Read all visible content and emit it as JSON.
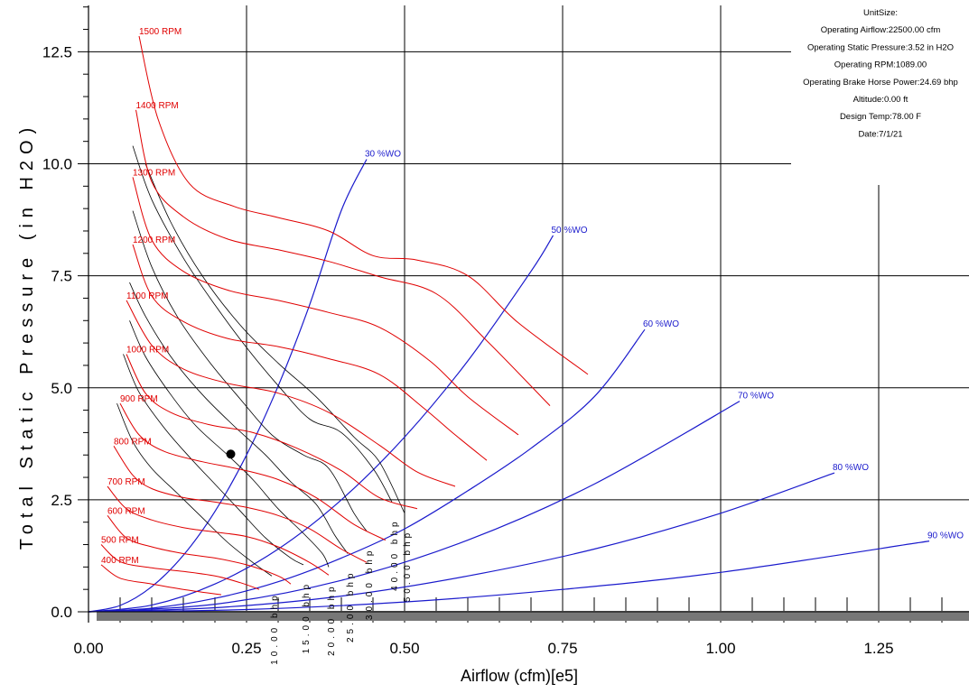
{
  "chart_data": {
    "type": "line",
    "title": "",
    "xlabel": "Airflow (cfm)[e5]",
    "ylabel": "Total Static Pressure (in H2O)",
    "xlim": [
      0,
      1.39
    ],
    "ylim": [
      0,
      13.5
    ],
    "x_ticks": [
      "0.00",
      "0.25",
      "0.50",
      "0.75",
      "1.00",
      "1.25"
    ],
    "y_ticks": [
      "0.0",
      "2.5",
      "5.0",
      "7.5",
      "10.0",
      "12.5"
    ],
    "grid": true,
    "operating_point": {
      "x": 0.225,
      "y": 3.52
    },
    "info_box": {
      "lines": [
        "UnitSize:",
        "Operating Airflow:22500.00 cfm",
        "Operating Static Pressure:3.52 in H2O",
        "Operating RPM:1089.00",
        "Operating Brake Horse Power:24.69 bhp",
        "Altitude:0.00 ft",
        "Design Temp:78.00 F",
        "Date:7/1/21"
      ]
    },
    "rpm_series": [
      {
        "name": "400 RPM",
        "color": "#e00000",
        "x": [
          0.02,
          0.05,
          0.1,
          0.15,
          0.21
        ],
        "y": [
          1.05,
          0.75,
          0.62,
          0.5,
          0.38
        ]
      },
      {
        "name": "500 RPM",
        "color": "#e00000",
        "x": [
          0.02,
          0.05,
          0.1,
          0.15,
          0.2,
          0.24,
          0.27
        ],
        "y": [
          1.5,
          1.12,
          0.98,
          0.9,
          0.8,
          0.65,
          0.5
        ]
      },
      {
        "name": "600 RPM",
        "color": "#e00000",
        "x": [
          0.03,
          0.06,
          0.1,
          0.15,
          0.2,
          0.25,
          0.3,
          0.32
        ],
        "y": [
          2.15,
          1.65,
          1.45,
          1.3,
          1.2,
          1.05,
          0.8,
          0.62
        ]
      },
      {
        "name": "700 RPM",
        "color": "#e00000",
        "x": [
          0.03,
          0.06,
          0.1,
          0.15,
          0.2,
          0.25,
          0.3,
          0.35,
          0.38
        ],
        "y": [
          2.8,
          2.3,
          2.05,
          1.88,
          1.78,
          1.68,
          1.45,
          1.1,
          0.82
        ]
      },
      {
        "name": "800 RPM",
        "color": "#e00000",
        "x": [
          0.04,
          0.07,
          0.1,
          0.15,
          0.2,
          0.25,
          0.3,
          0.35,
          0.4,
          0.44
        ],
        "y": [
          3.7,
          3.05,
          2.75,
          2.55,
          2.45,
          2.33,
          2.15,
          1.85,
          1.4,
          1.1
        ]
      },
      {
        "name": "900 RPM",
        "color": "#e00000",
        "x": [
          0.05,
          0.08,
          0.12,
          0.18,
          0.24,
          0.3,
          0.36,
          0.42,
          0.47
        ],
        "y": [
          4.65,
          3.95,
          3.58,
          3.35,
          3.18,
          2.95,
          2.55,
          1.95,
          1.6
        ]
      },
      {
        "name": "1000 RPM",
        "color": "#e00000",
        "x": [
          0.06,
          0.09,
          0.13,
          0.19,
          0.26,
          0.33,
          0.4,
          0.46,
          0.52
        ],
        "y": [
          5.75,
          4.88,
          4.45,
          4.18,
          4.0,
          3.65,
          3.15,
          2.55,
          2.3
        ]
      },
      {
        "name": "1100 RPM",
        "color": "#e00000",
        "x": [
          0.06,
          0.1,
          0.15,
          0.22,
          0.3,
          0.38,
          0.46,
          0.52,
          0.58
        ],
        "y": [
          6.95,
          5.95,
          5.42,
          5.1,
          4.88,
          4.45,
          3.72,
          3.12,
          2.8
        ]
      },
      {
        "name": "1200 RPM",
        "color": "#e00000",
        "x": [
          0.07,
          0.1,
          0.15,
          0.22,
          0.3,
          0.38,
          0.46,
          0.53,
          0.58,
          0.63
        ],
        "y": [
          8.2,
          7.05,
          6.48,
          6.1,
          5.92,
          5.65,
          5.3,
          4.55,
          3.95,
          3.38
        ]
      },
      {
        "name": "1300 RPM",
        "color": "#e00000",
        "x": [
          0.07,
          0.1,
          0.15,
          0.22,
          0.3,
          0.38,
          0.46,
          0.54,
          0.6,
          0.68
        ],
        "y": [
          9.7,
          8.3,
          7.6,
          7.18,
          6.95,
          6.68,
          6.35,
          5.6,
          4.8,
          3.95
        ]
      },
      {
        "name": "1400 RPM",
        "color": "#e00000",
        "x": [
          0.075,
          0.1,
          0.15,
          0.22,
          0.3,
          0.38,
          0.46,
          0.55,
          0.63,
          0.73
        ],
        "y": [
          11.2,
          9.6,
          8.82,
          8.32,
          8.08,
          7.82,
          7.48,
          7.1,
          6.05,
          4.6
        ]
      },
      {
        "name": "1500 RPM",
        "color": "#e00000",
        "x": [
          0.08,
          0.11,
          0.16,
          0.23,
          0.3,
          0.38,
          0.45,
          0.52,
          0.6,
          0.68,
          0.79
        ],
        "y": [
          12.85,
          11.0,
          9.55,
          9.05,
          8.8,
          8.5,
          7.95,
          7.85,
          7.5,
          6.45,
          5.3
        ]
      }
    ],
    "wo_series": [
      {
        "name": "30 %WO",
        "color": "#1a1acc",
        "x": [
          0.0,
          0.05,
          0.1,
          0.15,
          0.2,
          0.25,
          0.3,
          0.35,
          0.4,
          0.44
        ],
        "y": [
          0.0,
          0.14,
          0.56,
          1.26,
          2.24,
          3.5,
          5.04,
          6.86,
          8.96,
          10.1
        ]
      },
      {
        "name": "50 %WO",
        "color": "#1a1acc",
        "x": [
          0.0,
          0.1,
          0.2,
          0.3,
          0.4,
          0.5,
          0.6,
          0.7,
          0.735
        ],
        "y": [
          0.0,
          0.15,
          0.62,
          1.4,
          2.5,
          3.9,
          5.6,
          7.6,
          8.4
        ]
      },
      {
        "name": "60 %WO",
        "color": "#1a1acc",
        "x": [
          0.0,
          0.1,
          0.2,
          0.3,
          0.4,
          0.5,
          0.6,
          0.7,
          0.8,
          0.88
        ],
        "y": [
          0.0,
          0.08,
          0.3,
          0.67,
          1.2,
          1.85,
          2.7,
          3.65,
          4.8,
          6.3
        ]
      },
      {
        "name": "70 %WO",
        "color": "#1a1acc",
        "x": [
          0.0,
          0.2,
          0.4,
          0.6,
          0.8,
          1.03
        ],
        "y": [
          0.0,
          0.17,
          0.7,
          1.6,
          2.85,
          4.7
        ]
      },
      {
        "name": "80 %WO",
        "color": "#1a1acc",
        "x": [
          0.0,
          0.2,
          0.4,
          0.6,
          0.8,
          1.0,
          1.18
        ],
        "y": [
          0.0,
          0.09,
          0.35,
          0.8,
          1.4,
          2.2,
          3.1
        ]
      },
      {
        "name": "90 %WO",
        "color": "#1a1acc",
        "x": [
          0.0,
          0.25,
          0.5,
          0.75,
          1.0,
          1.33
        ],
        "y": [
          0.0,
          0.05,
          0.22,
          0.5,
          0.88,
          1.58
        ]
      }
    ],
    "bhp_series": [
      {
        "name": "10.00 bhp",
        "color": "#000000",
        "x": [
          0.045,
          0.07,
          0.1,
          0.14,
          0.18,
          0.22,
          0.26,
          0.29
        ],
        "y": [
          4.65,
          3.8,
          3.2,
          2.65,
          2.1,
          1.55,
          1.1,
          0.8
        ]
      },
      {
        "name": "15.00 bhp",
        "color": "#000000",
        "x": [
          0.055,
          0.08,
          0.12,
          0.16,
          0.2,
          0.24,
          0.28,
          0.32,
          0.34
        ],
        "y": [
          5.75,
          4.9,
          4.1,
          3.45,
          2.85,
          2.25,
          1.65,
          1.2,
          1.05
        ]
      },
      {
        "name": "20.00 bhp",
        "color": "#000000",
        "x": [
          0.065,
          0.09,
          0.13,
          0.17,
          0.22,
          0.26,
          0.3,
          0.34,
          0.37,
          0.38
        ],
        "y": [
          6.5,
          5.7,
          4.85,
          4.15,
          3.5,
          2.95,
          2.3,
          1.75,
          1.3,
          1.0
        ]
      },
      {
        "name": "25.00 bhp",
        "color": "#000000",
        "x": [
          0.065,
          0.09,
          0.13,
          0.18,
          0.23,
          0.28,
          0.32,
          0.36,
          0.39,
          0.41
        ],
        "y": [
          7.35,
          6.6,
          5.7,
          4.85,
          4.15,
          3.5,
          2.9,
          2.4,
          1.7,
          1.3
        ]
      },
      {
        "name": "30.00 bhp",
        "color": "#000000",
        "x": [
          0.07,
          0.1,
          0.14,
          0.19,
          0.24,
          0.29,
          0.34,
          0.38,
          0.42,
          0.44
        ],
        "y": [
          8.95,
          7.7,
          6.6,
          5.6,
          4.75,
          3.95,
          3.5,
          3.2,
          2.2,
          1.8
        ]
      },
      {
        "name": "40.00 bhp",
        "color": "#000000",
        "x": [
          0.07,
          0.1,
          0.15,
          0.2,
          0.25,
          0.3,
          0.35,
          0.4,
          0.45,
          0.48
        ],
        "y": [
          10.4,
          9.2,
          7.9,
          6.85,
          5.9,
          5.05,
          4.3,
          4.0,
          3.2,
          2.45
        ]
      },
      {
        "name": "50.00 bhp",
        "color": "#000000",
        "x": [
          0.09,
          0.13,
          0.18,
          0.24,
          0.3,
          0.36,
          0.42,
          0.46,
          0.5
        ],
        "y": [
          10.0,
          8.7,
          7.5,
          6.4,
          5.55,
          4.8,
          3.9,
          3.35,
          2.2
        ]
      }
    ]
  }
}
